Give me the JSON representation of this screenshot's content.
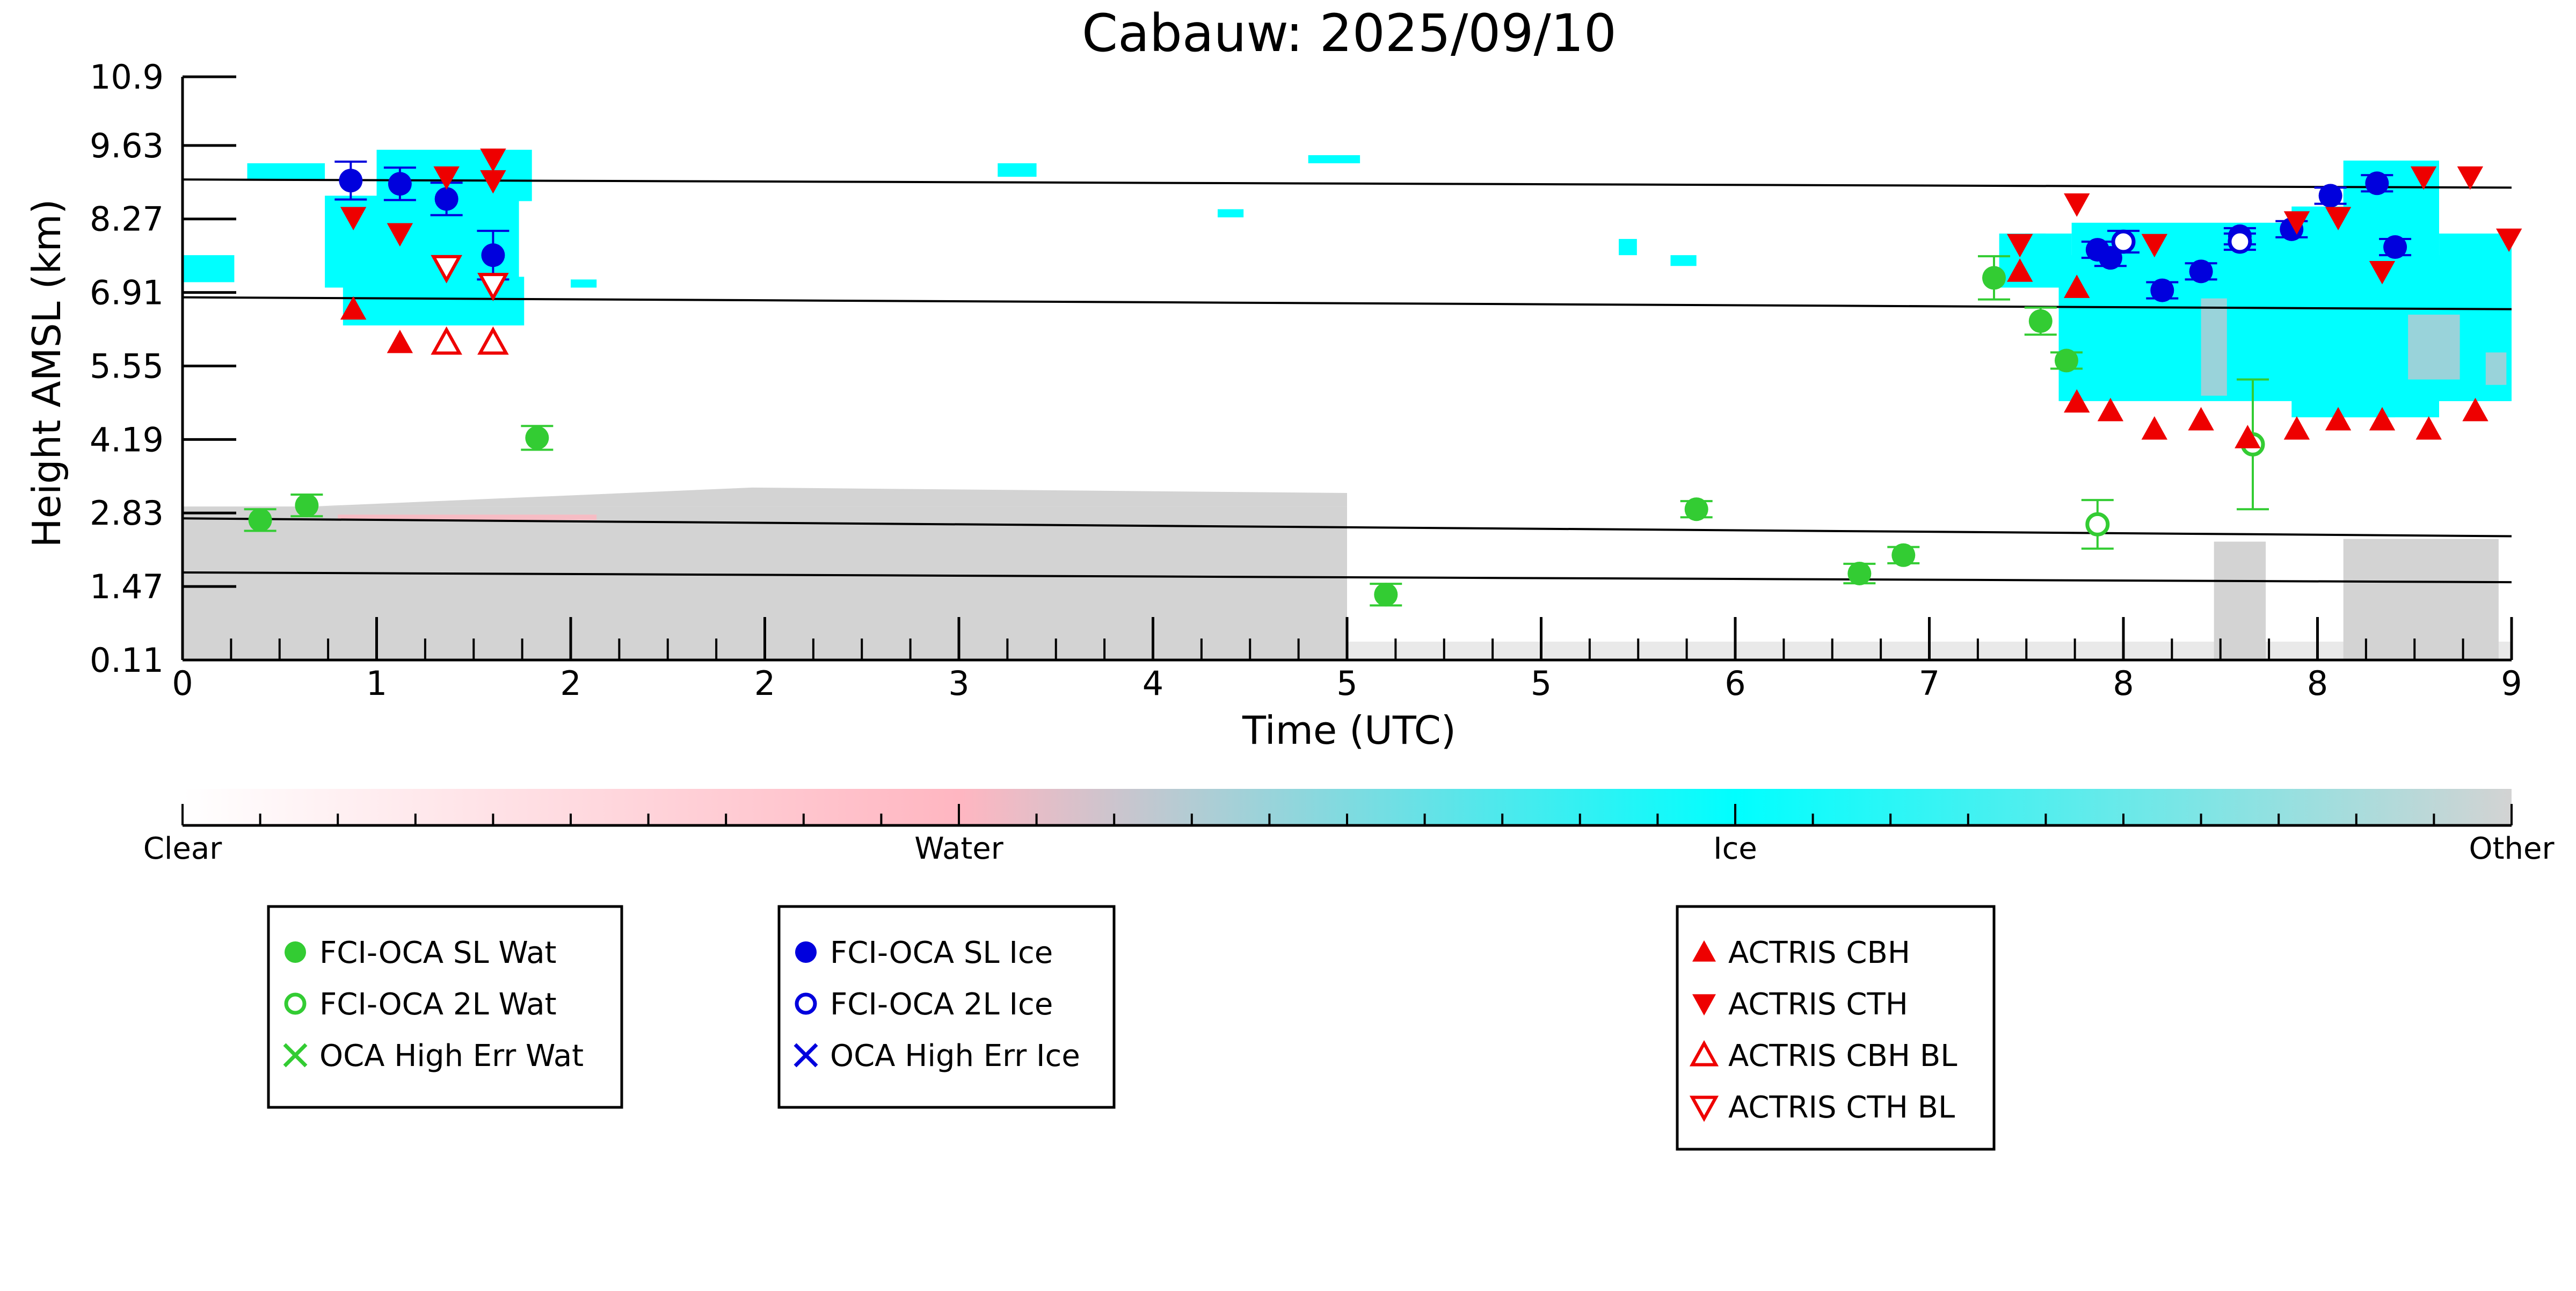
{
  "chart_data": {
    "type": "scatter",
    "title": "Cabauw: 2025/09/10",
    "xlabel": "Time (UTC)",
    "ylabel": "Height AMSL (km)",
    "xlim": [
      0,
      9
    ],
    "ylim": [
      0.11,
      10.9
    ],
    "xticks": [
      {
        "v": 0,
        "label": "0"
      },
      {
        "v": 0.75,
        "label": "1"
      },
      {
        "v": 1.5,
        "label": "2"
      },
      {
        "v": 2.25,
        "label": "2"
      },
      {
        "v": 3.0,
        "label": "3"
      },
      {
        "v": 3.75,
        "label": "4"
      },
      {
        "v": 4.5,
        "label": "5"
      },
      {
        "v": 5.25,
        "label": "5"
      },
      {
        "v": 6.0,
        "label": "6"
      },
      {
        "v": 6.75,
        "label": "7"
      },
      {
        "v": 7.5,
        "label": "8"
      },
      {
        "v": 8.25,
        "label": "8"
      },
      {
        "v": 9.0,
        "label": "9"
      }
    ],
    "yticks": [
      {
        "v": 0.11,
        "label": "0.11"
      },
      {
        "v": 1.47,
        "label": "1.47"
      },
      {
        "v": 2.83,
        "label": "2.83"
      },
      {
        "v": 4.19,
        "label": "4.19"
      },
      {
        "v": 5.55,
        "label": "5.55"
      },
      {
        "v": 6.91,
        "label": "6.91"
      },
      {
        "v": 8.27,
        "label": "8.27"
      },
      {
        "v": 9.63,
        "label": "9.63"
      },
      {
        "v": 10.9,
        "label": "10.9"
      }
    ],
    "reference_lines": [
      {
        "y_start": 9.0,
        "y_end": 8.85
      },
      {
        "y_start": 6.82,
        "y_end": 6.6
      },
      {
        "y_start": 2.73,
        "y_end": 2.4
      },
      {
        "y_start": 1.73,
        "y_end": 1.55
      }
    ],
    "series": [
      {
        "name": "FCI-OCA SL Wat",
        "marker": "filled-circle",
        "color": "#33cc33",
        "points": [
          {
            "x": 0.3,
            "y": 2.7,
            "err": 0.2
          },
          {
            "x": 0.48,
            "y": 2.97,
            "err": 0.2
          },
          {
            "x": 1.37,
            "y": 4.22,
            "err": 0.22
          },
          {
            "x": 4.65,
            "y": 1.32,
            "err": 0.2
          },
          {
            "x": 5.85,
            "y": 2.9,
            "err": 0.15
          },
          {
            "x": 6.48,
            "y": 1.71,
            "err": 0.18
          },
          {
            "x": 6.65,
            "y": 2.05,
            "err": 0.15
          },
          {
            "x": 7.0,
            "y": 7.18,
            "err": 0.4
          },
          {
            "x": 7.18,
            "y": 6.38,
            "err": 0.25
          },
          {
            "x": 7.28,
            "y": 5.65,
            "err": 0.15
          }
        ]
      },
      {
        "name": "FCI-OCA 2L Wat",
        "marker": "open-circle",
        "color": "#33cc33",
        "points": [
          {
            "x": 7.4,
            "y": 2.62,
            "err": 0.45
          },
          {
            "x": 8.0,
            "y": 4.1,
            "err": 1.2
          }
        ]
      },
      {
        "name": "OCA High Err Wat",
        "marker": "x",
        "color": "#33cc33",
        "points": []
      },
      {
        "name": "FCI-OCA SL Ice",
        "marker": "filled-circle",
        "color": "#0000dd",
        "points": [
          {
            "x": 0.65,
            "y": 8.98,
            "err": 0.35
          },
          {
            "x": 0.84,
            "y": 8.92,
            "err": 0.3
          },
          {
            "x": 1.02,
            "y": 8.64,
            "err": 0.3
          },
          {
            "x": 1.2,
            "y": 7.6,
            "err": 0.45
          },
          {
            "x": 7.4,
            "y": 7.7,
            "err": 0.15
          },
          {
            "x": 7.45,
            "y": 7.55,
            "err": 0.15
          },
          {
            "x": 7.65,
            "y": 6.95,
            "err": 0.15
          },
          {
            "x": 7.8,
            "y": 7.3,
            "err": 0.15
          },
          {
            "x": 7.95,
            "y": 7.95,
            "err": 0.15
          },
          {
            "x": 8.15,
            "y": 8.08,
            "err": 0.15
          },
          {
            "x": 8.3,
            "y": 8.7,
            "err": 0.15
          },
          {
            "x": 8.48,
            "y": 8.93,
            "err": 0.15
          },
          {
            "x": 8.55,
            "y": 7.75,
            "err": 0.15
          }
        ]
      },
      {
        "name": "FCI-OCA 2L Ice",
        "marker": "open-circle",
        "color": "#0000dd",
        "points": [
          {
            "x": 7.5,
            "y": 7.85,
            "err": 0.2
          },
          {
            "x": 7.95,
            "y": 7.85,
            "err": 0.15
          }
        ]
      },
      {
        "name": "OCA High Err Ice",
        "marker": "x",
        "color": "#0000dd",
        "points": []
      },
      {
        "name": "ACTRIS CBH",
        "marker": "triangle-up",
        "color": "#ee0000",
        "points": [
          {
            "x": 0.66,
            "y": 6.6
          },
          {
            "x": 0.84,
            "y": 5.98
          },
          {
            "x": 1.02,
            "y": 5.98
          },
          {
            "x": 1.2,
            "y": 5.98
          },
          {
            "x": 7.1,
            "y": 7.3
          },
          {
            "x": 7.32,
            "y": 7.0
          },
          {
            "x": 7.32,
            "y": 4.88
          },
          {
            "x": 7.45,
            "y": 4.72
          },
          {
            "x": 7.62,
            "y": 4.38
          },
          {
            "x": 7.8,
            "y": 4.55
          },
          {
            "x": 7.98,
            "y": 4.22
          },
          {
            "x": 8.17,
            "y": 4.38
          },
          {
            "x": 8.33,
            "y": 4.55
          },
          {
            "x": 8.5,
            "y": 4.55
          },
          {
            "x": 8.68,
            "y": 4.38
          },
          {
            "x": 8.86,
            "y": 4.72
          }
        ]
      },
      {
        "name": "ACTRIS CTH",
        "marker": "triangle-down",
        "color": "#ee0000",
        "points": [
          {
            "x": 0.66,
            "y": 8.3
          },
          {
            "x": 0.84,
            "y": 8.0
          },
          {
            "x": 1.02,
            "y": 9.05
          },
          {
            "x": 1.2,
            "y": 9.38
          },
          {
            "x": 1.2,
            "y": 8.98
          },
          {
            "x": 7.1,
            "y": 7.8
          },
          {
            "x": 7.32,
            "y": 8.55
          },
          {
            "x": 7.62,
            "y": 7.8
          },
          {
            "x": 8.17,
            "y": 8.22
          },
          {
            "x": 8.33,
            "y": 8.3
          },
          {
            "x": 8.5,
            "y": 7.3
          },
          {
            "x": 8.66,
            "y": 9.05
          },
          {
            "x": 8.84,
            "y": 9.05
          },
          {
            "x": 8.99,
            "y": 7.9
          }
        ]
      },
      {
        "name": "ACTRIS CBH BL",
        "marker": "open-triangle-up",
        "color": "#ee0000",
        "points": [
          {
            "x": 1.02,
            "y": 5.98
          },
          {
            "x": 1.2,
            "y": 5.98
          }
        ]
      },
      {
        "name": "ACTRIS CTH BL",
        "marker": "open-triangle-down",
        "color": "#ee0000",
        "points": [
          {
            "x": 1.02,
            "y": 7.38
          },
          {
            "x": 1.2,
            "y": 7.05
          }
        ]
      }
    ],
    "colorbar": {
      "labels": [
        "Clear",
        "Water",
        "Ice",
        "Other"
      ],
      "colors": [
        "#ffffff",
        "#ffb6c1",
        "#00ffff",
        "#d3d3d3"
      ]
    },
    "background_classes": {
      "ice_color": "#00ffff",
      "other_color": "#d3d3d3",
      "water_color": "#ffb6c1"
    }
  }
}
